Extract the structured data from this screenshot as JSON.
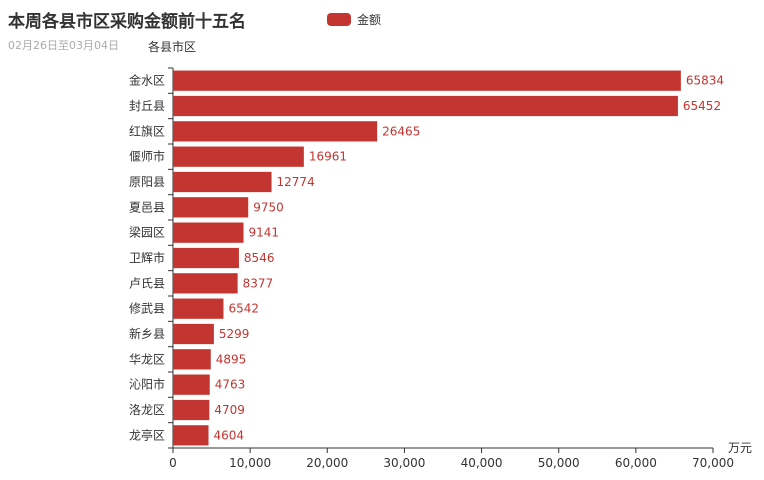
{
  "title": "本周各县市区采购金额前十五名",
  "subtitle": "02月26日至03月04日",
  "legend": {
    "label": "金额",
    "color": "#c23531"
  },
  "chart_data": {
    "type": "bar",
    "orientation": "horizontal",
    "ylabel": "各县市区",
    "xlabel": "万元",
    "categories": [
      "金水区",
      "封丘县",
      "红旗区",
      "偃师市",
      "原阳县",
      "夏邑县",
      "梁园区",
      "卫辉市",
      "卢氏县",
      "修武县",
      "新乡县",
      "华龙区",
      "沁阳市",
      "洛龙区",
      "龙亭区"
    ],
    "series": [
      {
        "name": "金额",
        "color": "#c23531",
        "values": [
          65834,
          65452,
          26465,
          16961,
          12774,
          9750,
          9141,
          8546,
          8377,
          6542,
          5299,
          4895,
          4763,
          4709,
          4604
        ]
      }
    ],
    "xlim": [
      0,
      70000
    ],
    "xticks": [
      "0",
      "10,000",
      "20,000",
      "30,000",
      "40,000",
      "50,000",
      "60,000",
      "70,000"
    ],
    "data_labels": "right",
    "grid": false,
    "legend_position": "top"
  }
}
